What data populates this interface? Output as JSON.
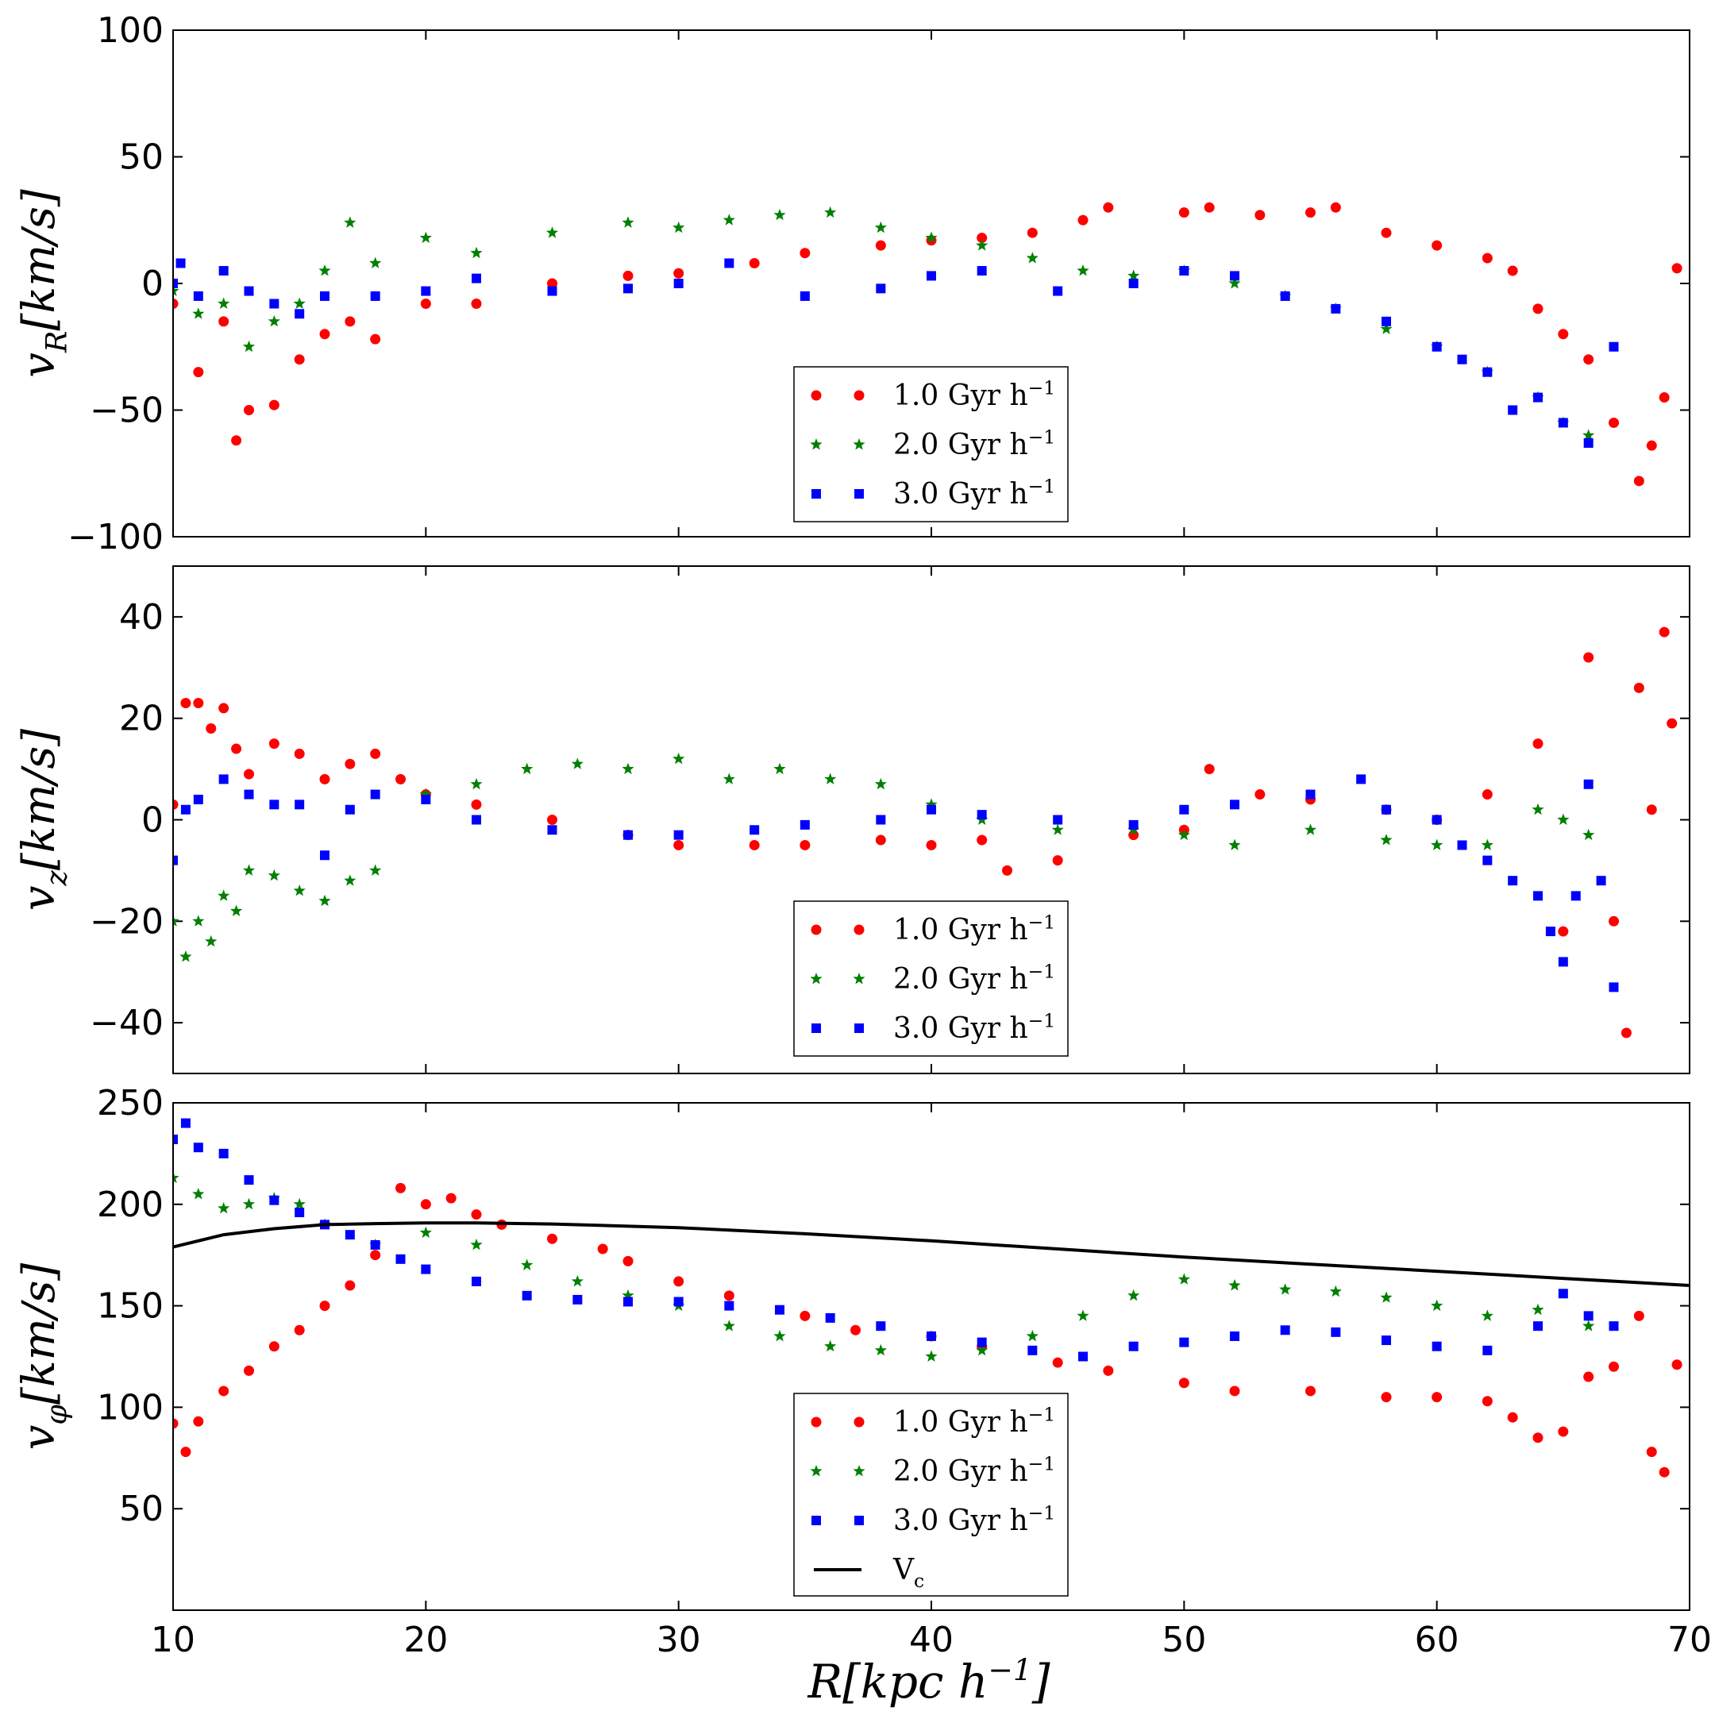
{
  "chart_data": {
    "type": "scatter",
    "title": "",
    "xlabel": "R[kpc h^{-1}]",
    "xlim": [
      10,
      70
    ],
    "xticks": [
      10,
      20,
      30,
      40,
      50,
      60,
      70
    ],
    "grid": false,
    "colors": {
      "s1": "#ff0000",
      "s2": "#008000",
      "s3": "#0000ff",
      "vc": "#000000"
    },
    "legend_entries": [
      "1.0 Gyr h^{-1}",
      "2.0 Gyr h^{-1}",
      "3.0 Gyr h^{-1}",
      "V_c"
    ],
    "panels": [
      {
        "id": "vR",
        "ylabel": "v_R[km/s]",
        "ylim": [
          -100,
          100
        ],
        "yticks": [
          -100,
          -50,
          0,
          50,
          100
        ],
        "legend": "bottom-center",
        "series": [
          {
            "name": "1.0 Gyr h^{-1}",
            "marker": "circle",
            "color": "#ff0000",
            "x": [
              10,
              11,
              12,
              12.5,
              13,
              14,
              15,
              16,
              17,
              18,
              20,
              22,
              25,
              28,
              30,
              33,
              35,
              38,
              40,
              42,
              44,
              46,
              47,
              50,
              51,
              53,
              55,
              56,
              58,
              60,
              62,
              63,
              64,
              65,
              66,
              67,
              68,
              68.5,
              69,
              69.5
            ],
            "y": [
              -8,
              -35,
              -15,
              -62,
              -50,
              -48,
              -30,
              -20,
              -15,
              -22,
              -8,
              -8,
              0,
              3,
              4,
              8,
              12,
              15,
              17,
              18,
              20,
              25,
              30,
              28,
              30,
              27,
              28,
              30,
              20,
              15,
              10,
              5,
              -10,
              -20,
              -30,
              -55,
              -78,
              -64,
              -45,
              6
            ]
          },
          {
            "name": "2.0 Gyr h^{-1}",
            "marker": "star",
            "color": "#008000",
            "x": [
              10,
              11,
              12,
              13,
              14,
              15,
              16,
              17,
              18,
              20,
              22,
              25,
              28,
              30,
              32,
              34,
              36,
              38,
              40,
              42,
              44,
              46,
              48,
              50,
              52,
              54,
              56,
              58,
              60,
              62,
              64,
              65,
              66
            ],
            "y": [
              -3,
              -12,
              -8,
              -25,
              -15,
              -8,
              5,
              24,
              8,
              18,
              12,
              20,
              24,
              22,
              25,
              27,
              28,
              22,
              18,
              15,
              10,
              5,
              3,
              5,
              0,
              -5,
              -10,
              -18,
              -25,
              -35,
              -45,
              -55,
              -60
            ]
          },
          {
            "name": "3.0 Gyr h^{-1}",
            "marker": "square",
            "color": "#0000ff",
            "x": [
              10,
              10.3,
              11,
              12,
              13,
              14,
              15,
              16,
              18,
              20,
              22,
              25,
              28,
              30,
              32,
              35,
              38,
              40,
              42,
              45,
              48,
              50,
              52,
              54,
              56,
              58,
              60,
              61,
              62,
              63,
              64,
              65,
              66,
              67
            ],
            "y": [
              0,
              8,
              -5,
              5,
              -3,
              -8,
              -12,
              -5,
              -5,
              -3,
              2,
              -3,
              -2,
              0,
              8,
              -5,
              -2,
              3,
              5,
              -3,
              0,
              5,
              3,
              -5,
              -10,
              -15,
              -25,
              -30,
              -35,
              -50,
              -45,
              -55,
              -63,
              -25
            ]
          }
        ]
      },
      {
        "id": "vz",
        "ylabel": "v_z[km/s]",
        "ylim": [
          -50,
          50
        ],
        "yticks": [
          -40,
          -20,
          0,
          20,
          40
        ],
        "legend": "bottom-center",
        "series": [
          {
            "name": "1.0 Gyr h^{-1}",
            "marker": "circle",
            "color": "#ff0000",
            "x": [
              10,
              10.5,
              11,
              11.5,
              12,
              12.5,
              13,
              14,
              15,
              16,
              17,
              18,
              19,
              20,
              22,
              25,
              28,
              30,
              33,
              35,
              38,
              40,
              42,
              43,
              45,
              48,
              50,
              51,
              53,
              55,
              58,
              60,
              62,
              64,
              65,
              66,
              67,
              67.5,
              68,
              68.5,
              69,
              69.3
            ],
            "y": [
              3,
              23,
              23,
              18,
              22,
              14,
              9,
              15,
              13,
              8,
              11,
              13,
              8,
              5,
              3,
              0,
              -3,
              -5,
              -5,
              -5,
              -4,
              -5,
              -4,
              -10,
              -8,
              -3,
              -2,
              10,
              5,
              4,
              2,
              0,
              5,
              15,
              -22,
              32,
              -20,
              -42,
              26,
              2,
              37,
              19
            ]
          },
          {
            "name": "2.0 Gyr h^{-1}",
            "marker": "star",
            "color": "#008000",
            "x": [
              10,
              10.5,
              11,
              11.5,
              12,
              12.5,
              13,
              14,
              15,
              16,
              17,
              18,
              20,
              22,
              24,
              26,
              28,
              30,
              32,
              34,
              36,
              38,
              40,
              42,
              45,
              48,
              50,
              52,
              55,
              58,
              60,
              62,
              64,
              65,
              66
            ],
            "y": [
              -20,
              -27,
              -20,
              -24,
              -15,
              -18,
              -10,
              -11,
              -14,
              -16,
              -12,
              -10,
              5,
              7,
              10,
              11,
              10,
              12,
              8,
              10,
              8,
              7,
              3,
              0,
              -2,
              -2,
              -3,
              -5,
              -2,
              -4,
              -5,
              -5,
              2,
              0,
              -3
            ]
          },
          {
            "name": "3.0 Gyr h^{-1}",
            "marker": "square",
            "color": "#0000ff",
            "x": [
              10,
              10.5,
              11,
              12,
              13,
              14,
              15,
              16,
              17,
              18,
              20,
              22,
              25,
              28,
              30,
              33,
              35,
              38,
              40,
              42,
              45,
              48,
              50,
              52,
              55,
              57,
              58,
              60,
              61,
              62,
              63,
              64,
              64.5,
              65,
              65.5,
              66,
              66.5,
              67
            ],
            "y": [
              -8,
              2,
              4,
              8,
              5,
              3,
              3,
              -7,
              2,
              5,
              4,
              0,
              -2,
              -3,
              -3,
              -2,
              -1,
              0,
              2,
              1,
              0,
              -1,
              2,
              3,
              5,
              8,
              2,
              0,
              -5,
              -8,
              -12,
              -15,
              -22,
              -28,
              -15,
              7,
              -12,
              -33
            ]
          }
        ]
      },
      {
        "id": "vphi",
        "ylabel": "v_φ[km/s]",
        "ylim": [
          0,
          250
        ],
        "yticks": [
          50,
          100,
          150,
          200,
          250
        ],
        "legend": "bottom-center",
        "series": [
          {
            "name": "1.0 Gyr h^{-1}",
            "marker": "circle",
            "color": "#ff0000",
            "x": [
              10,
              10.5,
              11,
              12,
              13,
              14,
              15,
              16,
              17,
              18,
              19,
              20,
              21,
              22,
              23,
              25,
              27,
              28,
              30,
              32,
              35,
              37,
              40,
              42,
              45,
              47,
              50,
              52,
              55,
              58,
              60,
              62,
              63,
              64,
              65,
              66,
              67,
              68,
              68.5,
              69,
              69.5
            ],
            "y": [
              92,
              78,
              93,
              108,
              118,
              130,
              138,
              150,
              160,
              175,
              208,
              200,
              203,
              195,
              190,
              183,
              178,
              172,
              162,
              155,
              145,
              138,
              135,
              130,
              122,
              118,
              112,
              108,
              108,
              105,
              105,
              103,
              95,
              85,
              88,
              115,
              120,
              145,
              78,
              68,
              121
            ]
          },
          {
            "name": "2.0 Gyr h^{-1}",
            "marker": "star",
            "color": "#008000",
            "x": [
              10,
              11,
              12,
              13,
              14,
              15,
              16,
              18,
              20,
              22,
              24,
              26,
              28,
              30,
              32,
              34,
              36,
              38,
              40,
              42,
              44,
              46,
              48,
              50,
              52,
              54,
              56,
              58,
              60,
              62,
              64,
              66
            ],
            "y": [
              213,
              205,
              198,
              200,
              203,
              200,
              190,
              180,
              186,
              180,
              170,
              162,
              155,
              150,
              140,
              135,
              130,
              128,
              125,
              128,
              135,
              145,
              155,
              163,
              160,
              158,
              157,
              154,
              150,
              145,
              148,
              140
            ]
          },
          {
            "name": "3.0 Gyr h^{-1}",
            "marker": "square",
            "color": "#0000ff",
            "x": [
              10,
              10.5,
              11,
              12,
              13,
              14,
              15,
              16,
              17,
              18,
              19,
              20,
              22,
              24,
              26,
              28,
              30,
              32,
              34,
              36,
              38,
              40,
              42,
              44,
              46,
              48,
              50,
              52,
              54,
              56,
              58,
              60,
              62,
              64,
              65,
              66,
              67
            ],
            "y": [
              232,
              240,
              228,
              225,
              212,
              202,
              196,
              190,
              185,
              180,
              173,
              168,
              162,
              155,
              153,
              152,
              152,
              150,
              148,
              144,
              140,
              135,
              132,
              128,
              125,
              130,
              132,
              135,
              138,
              137,
              133,
              130,
              128,
              140,
              156,
              145,
              140
            ]
          },
          {
            "name": "V_c",
            "marker": "line",
            "color": "#000000",
            "x": [
              10,
              12,
              14,
              16,
              18,
              20,
              22,
              25,
              30,
              35,
              40,
              45,
              50,
              55,
              60,
              65,
              70
            ],
            "y": [
              179,
              185,
              188,
              190,
              190.5,
              190.8,
              190.8,
              190.3,
              188.5,
              185.5,
              182,
              178,
              174,
              170.5,
              167,
              163.5,
              160
            ]
          }
        ]
      }
    ]
  }
}
